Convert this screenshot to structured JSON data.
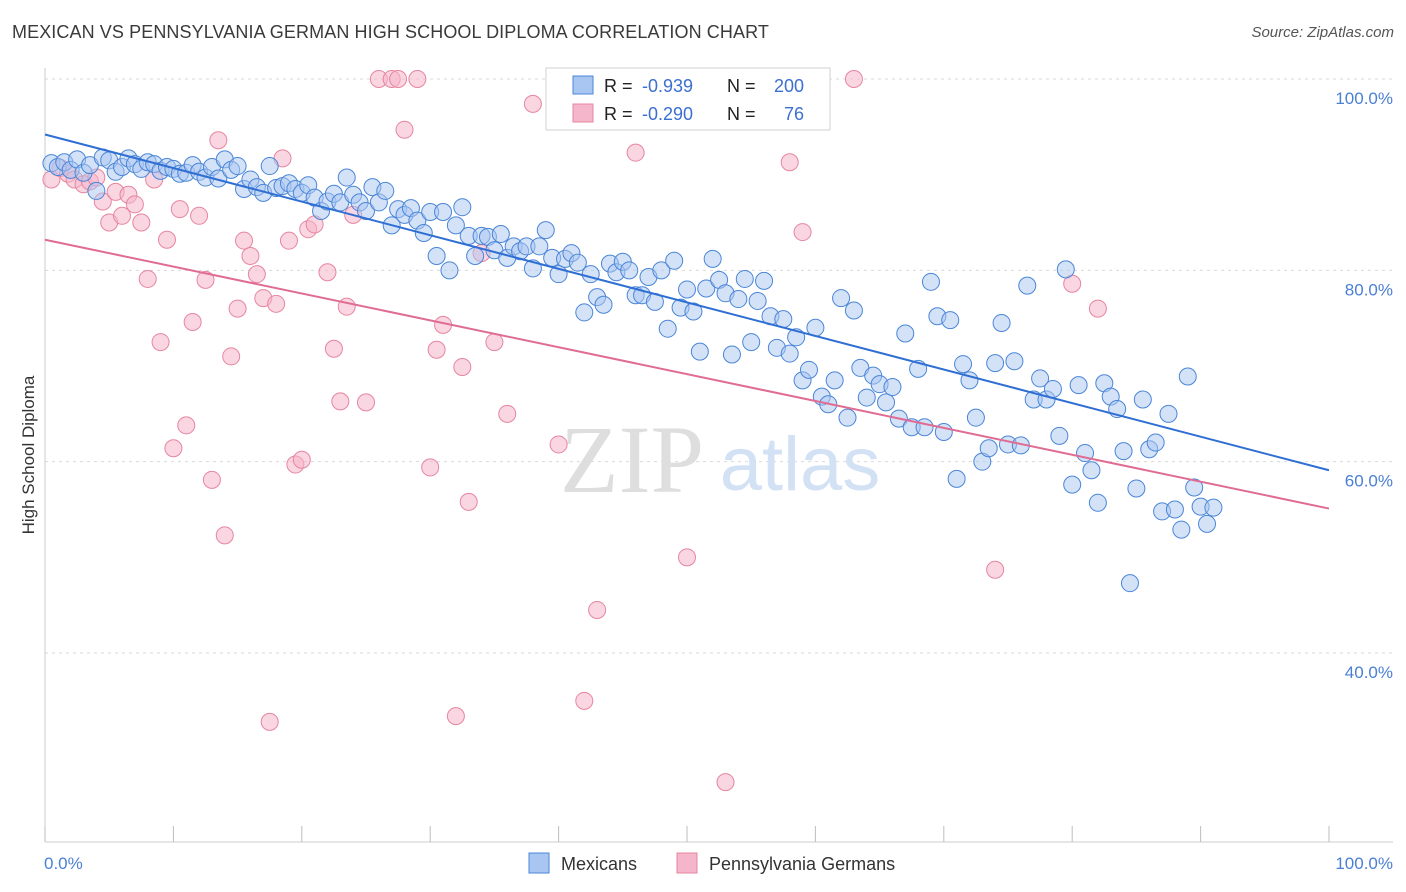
{
  "title": "MEXICAN VS PENNSYLVANIA GERMAN HIGH SCHOOL DIPLOMA CORRELATION CHART",
  "source": "Source: ZipAtlas.com",
  "watermark": {
    "zip": "ZIP",
    "atlas": "atlas"
  },
  "colors": {
    "mexicans_fill": "#a9c6f2",
    "mexicans_stroke": "#4a86d8",
    "mexicans_line": "#2f6fd3",
    "pg_fill": "#f5b5ca",
    "pg_stroke": "#e6869f",
    "pg_line": "#e06c93",
    "tick_text": "#4a7fd4",
    "grid": "#d9d9d9"
  },
  "legend": {
    "rows": [
      {
        "r_label": "R = ",
        "r_value": "-0.939",
        "n_label": "N = ",
        "n_value": "200"
      },
      {
        "r_label": "R = ",
        "r_value": "-0.290",
        "n_label": "N = ",
        "n_value": "76"
      }
    ]
  },
  "bottom_legend": [
    "Mexicans",
    "Pennsylvania Germans"
  ],
  "chart_data": {
    "type": "scatter",
    "title": "MEXICAN VS PENNSYLVANIA GERMAN HIGH SCHOOL DIPLOMA CORRELATION CHART",
    "xlabel": "",
    "ylabel": "High School Diploma",
    "xlim": [
      0,
      100
    ],
    "ylim": [
      20,
      102
    ],
    "x_tick_labels": [
      "0.0%",
      "100.0%"
    ],
    "y_ticks": [
      100,
      80,
      60,
      40
    ],
    "y_tick_labels": [
      "100.0%",
      "80.0%",
      "60.0%",
      "40.0%"
    ],
    "grid": true,
    "legend_position": "top-center",
    "series": [
      {
        "name": "Mexicans",
        "R": -0.939,
        "N": 200,
        "trend": {
          "x": [
            0,
            100
          ],
          "y": [
            94.2,
            59.1
          ]
        },
        "points": [
          [
            0.5,
            91.2
          ],
          [
            1,
            90.8
          ],
          [
            1.5,
            91.3
          ],
          [
            2,
            90.5
          ],
          [
            2.5,
            91.6
          ],
          [
            3,
            90.2
          ],
          [
            3.5,
            91
          ],
          [
            4,
            88.3
          ],
          [
            4.5,
            91.8
          ],
          [
            5,
            91.5
          ],
          [
            5.5,
            90.3
          ],
          [
            6,
            90.8
          ],
          [
            6.5,
            91.7
          ],
          [
            7,
            91.1
          ],
          [
            7.5,
            90.6
          ],
          [
            8,
            91.3
          ],
          [
            8.5,
            91.1
          ],
          [
            9,
            90.4
          ],
          [
            9.5,
            90.8
          ],
          [
            10,
            90.6
          ],
          [
            10.5,
            90.1
          ],
          [
            11,
            90.2
          ],
          [
            11.5,
            91
          ],
          [
            12,
            90.3
          ],
          [
            12.5,
            89.7
          ],
          [
            13,
            90.8
          ],
          [
            13.5,
            89.6
          ],
          [
            14,
            91.6
          ],
          [
            14.5,
            90.5
          ],
          [
            15,
            90.9
          ],
          [
            15.5,
            88.5
          ],
          [
            16,
            89.5
          ],
          [
            16.5,
            88.7
          ],
          [
            17,
            88.1
          ],
          [
            17.5,
            90.9
          ],
          [
            18,
            88.6
          ],
          [
            18.5,
            88.8
          ],
          [
            19,
            89.1
          ],
          [
            19.5,
            88.5
          ],
          [
            20,
            88.1
          ],
          [
            20.5,
            88.9
          ],
          [
            21,
            87.6
          ],
          [
            21.5,
            86.2
          ],
          [
            22,
            87.2
          ],
          [
            22.5,
            88
          ],
          [
            23,
            87.1
          ],
          [
            23.5,
            89.7
          ],
          [
            24,
            87.9
          ],
          [
            24.5,
            87.1
          ],
          [
            25,
            86.2
          ],
          [
            25.5,
            88.7
          ],
          [
            26,
            87.1
          ],
          [
            26.5,
            88.3
          ],
          [
            27,
            84.7
          ],
          [
            27.5,
            86.4
          ],
          [
            28,
            85.8
          ],
          [
            28.5,
            86.5
          ],
          [
            29,
            85.2
          ],
          [
            29.5,
            83.9
          ],
          [
            30,
            86.1
          ],
          [
            30.5,
            81.5
          ],
          [
            31,
            86.1
          ],
          [
            31.5,
            80
          ],
          [
            32,
            84.7
          ],
          [
            32.5,
            86.6
          ],
          [
            33,
            83.6
          ],
          [
            33.5,
            81.5
          ],
          [
            34,
            83.6
          ],
          [
            34.5,
            83.5
          ],
          [
            35,
            82.1
          ],
          [
            35.5,
            83.8
          ],
          [
            36,
            81.3
          ],
          [
            36.5,
            82.5
          ],
          [
            37,
            82
          ],
          [
            37.5,
            82.5
          ],
          [
            38,
            80.2
          ],
          [
            38.5,
            82.5
          ],
          [
            39,
            84.2
          ],
          [
            39.5,
            81.3
          ],
          [
            40,
            79.6
          ],
          [
            40.5,
            81.2
          ],
          [
            41,
            81.8
          ],
          [
            41.5,
            80.8
          ],
          [
            42,
            75.6
          ],
          [
            42.5,
            79.6
          ],
          [
            43,
            77.2
          ],
          [
            43.5,
            76.4
          ],
          [
            44,
            80.7
          ],
          [
            44.5,
            79.8
          ],
          [
            45,
            80.9
          ],
          [
            45.5,
            80
          ],
          [
            46,
            77.4
          ],
          [
            46.5,
            77.4
          ],
          [
            47,
            79.3
          ],
          [
            47.5,
            76.7
          ],
          [
            48,
            80
          ],
          [
            48.5,
            73.9
          ],
          [
            49,
            81
          ],
          [
            49.5,
            76.1
          ],
          [
            50,
            78
          ],
          [
            50.5,
            75.7
          ],
          [
            51,
            71.5
          ],
          [
            51.5,
            78.1
          ],
          [
            52,
            81.2
          ],
          [
            52.5,
            79
          ],
          [
            53,
            77.6
          ],
          [
            53.5,
            71.2
          ],
          [
            54,
            77
          ],
          [
            54.5,
            79.1
          ],
          [
            55,
            72.5
          ],
          [
            55.5,
            76.8
          ],
          [
            56,
            78.9
          ],
          [
            56.5,
            75.2
          ],
          [
            57,
            71.9
          ],
          [
            57.5,
            74.9
          ],
          [
            58,
            71.3
          ],
          [
            58.5,
            73
          ],
          [
            59,
            68.5
          ],
          [
            59.5,
            69.6
          ],
          [
            60,
            74
          ],
          [
            60.5,
            66.8
          ],
          [
            61,
            66
          ],
          [
            61.5,
            68.5
          ],
          [
            62,
            77.1
          ],
          [
            62.5,
            64.6
          ],
          [
            63,
            75.8
          ],
          [
            63.5,
            69.8
          ],
          [
            64,
            66.7
          ],
          [
            64.5,
            69
          ],
          [
            65,
            68.1
          ],
          [
            65.5,
            66.2
          ],
          [
            66,
            67.8
          ],
          [
            66.5,
            64.5
          ],
          [
            67,
            73.4
          ],
          [
            67.5,
            63.6
          ],
          [
            68,
            69.7
          ],
          [
            68.5,
            63.6
          ],
          [
            69,
            78.8
          ],
          [
            69.5,
            75.2
          ],
          [
            70,
            63.1
          ],
          [
            70.5,
            74.8
          ],
          [
            71,
            58.2
          ],
          [
            71.5,
            70.2
          ],
          [
            72,
            68.5
          ],
          [
            72.5,
            64.6
          ],
          [
            73,
            60
          ],
          [
            73.5,
            61.4
          ],
          [
            74,
            70.3
          ],
          [
            74.5,
            74.5
          ],
          [
            75,
            61.8
          ],
          [
            75.5,
            70.5
          ],
          [
            76,
            61.7
          ],
          [
            76.5,
            78.4
          ],
          [
            77,
            66.5
          ],
          [
            77.5,
            68.7
          ],
          [
            78,
            66.5
          ],
          [
            78.5,
            67.6
          ],
          [
            79,
            62.7
          ],
          [
            79.5,
            80.1
          ],
          [
            80,
            57.6
          ],
          [
            80.5,
            68
          ],
          [
            81,
            60.9
          ],
          [
            81.5,
            59.1
          ],
          [
            82,
            55.7
          ],
          [
            82.5,
            68.2
          ],
          [
            83,
            66.8
          ],
          [
            83.5,
            65.5
          ],
          [
            84,
            61.1
          ],
          [
            84.5,
            47.3
          ],
          [
            85,
            57.2
          ],
          [
            85.5,
            66.5
          ],
          [
            86,
            61.3
          ],
          [
            86.5,
            62
          ],
          [
            87,
            54.8
          ],
          [
            87.5,
            65
          ],
          [
            88,
            55
          ],
          [
            88.5,
            52.9
          ],
          [
            89,
            68.9
          ],
          [
            89.5,
            57.3
          ],
          [
            90,
            55.3
          ],
          [
            90.5,
            53.5
          ],
          [
            91,
            55.2
          ]
        ]
      },
      {
        "name": "Pennsylvania Germans",
        "R": -0.29,
        "N": 76,
        "trend": {
          "x": [
            0,
            100
          ],
          "y": [
            83.2,
            55.1
          ]
        },
        "points": [
          [
            0.5,
            89.5
          ],
          [
            1.2,
            90.7
          ],
          [
            1.8,
            90.1
          ],
          [
            2.3,
            89.5
          ],
          [
            3,
            89
          ],
          [
            3.5,
            89.3
          ],
          [
            4,
            89.7
          ],
          [
            4.5,
            87.2
          ],
          [
            5,
            85
          ],
          [
            5.5,
            88.2
          ],
          [
            6,
            85.7
          ],
          [
            6.5,
            87.9
          ],
          [
            7,
            86.9
          ],
          [
            7.5,
            85
          ],
          [
            8,
            79.1
          ],
          [
            8.5,
            89.5
          ],
          [
            9,
            72.5
          ],
          [
            9.5,
            83.2
          ],
          [
            10,
            61.4
          ],
          [
            10.5,
            86.4
          ],
          [
            11,
            63.8
          ],
          [
            11.5,
            74.6
          ],
          [
            12,
            85.7
          ],
          [
            12.5,
            79
          ],
          [
            13,
            58.1
          ],
          [
            13.5,
            93.6
          ],
          [
            14,
            52.3
          ],
          [
            14.5,
            71
          ],
          [
            15,
            76
          ],
          [
            15.5,
            83.1
          ],
          [
            16,
            81.5
          ],
          [
            16.5,
            79.6
          ],
          [
            17,
            77.1
          ],
          [
            17.5,
            32.8
          ],
          [
            18,
            76.5
          ],
          [
            18.5,
            91.7
          ],
          [
            19,
            83.1
          ],
          [
            19.5,
            59.7
          ],
          [
            20,
            60.2
          ],
          [
            20.5,
            84.3
          ],
          [
            21,
            84.8
          ],
          [
            22,
            79.8
          ],
          [
            22.5,
            71.8
          ],
          [
            23,
            66.3
          ],
          [
            23.5,
            76.2
          ],
          [
            24,
            85.8
          ],
          [
            25,
            66.2
          ],
          [
            26,
            100
          ],
          [
            27,
            100
          ],
          [
            27.5,
            100
          ],
          [
            28,
            94.7
          ],
          [
            29,
            100
          ],
          [
            30,
            59.4
          ],
          [
            30.5,
            71.7
          ],
          [
            31,
            74.3
          ],
          [
            32,
            33.4
          ],
          [
            32.5,
            69.9
          ],
          [
            33,
            55.8
          ],
          [
            34,
            81.8
          ],
          [
            35,
            72.5
          ],
          [
            36,
            65
          ],
          [
            38,
            97.4
          ],
          [
            40,
            61.8
          ],
          [
            42,
            35
          ],
          [
            43,
            44.5
          ],
          [
            46,
            92.3
          ],
          [
            50,
            50
          ],
          [
            53,
            26.5
          ],
          [
            58,
            91.3
          ],
          [
            59,
            84
          ],
          [
            63,
            100
          ],
          [
            74,
            48.7
          ],
          [
            80,
            78.6
          ],
          [
            82,
            76
          ]
        ]
      }
    ]
  }
}
